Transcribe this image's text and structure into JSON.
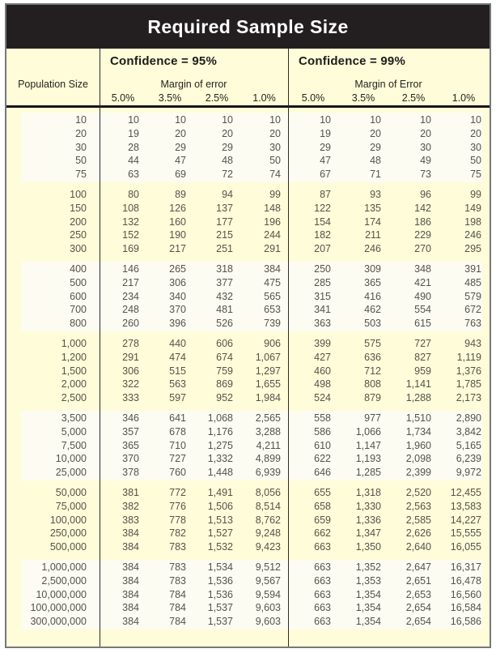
{
  "title": "Required Sample Size",
  "header": {
    "population_label": "Population Size",
    "blocks": [
      {
        "confidence_label": "Confidence = 95%",
        "margin_label": "Margin of error",
        "margins": [
          "5.0%",
          "3.5%",
          "2.5%",
          "1.0%"
        ]
      },
      {
        "confidence_label": "Confidence = 99%",
        "margin_label": "Margin of Error",
        "margins": [
          "5.0%",
          "3.5%",
          "2.5%",
          "1.0%"
        ]
      }
    ]
  },
  "colors": {
    "header_band": "#231F20",
    "cream_background": "#FFFCD9",
    "band_white": "#FCFCF3",
    "data_text": "#54534b",
    "rule": "#161614"
  },
  "table": {
    "groups": [
      {
        "rows": [
          {
            "population": "10",
            "c95": [
              "10",
              "10",
              "10",
              "10"
            ],
            "c99": [
              "10",
              "10",
              "10",
              "10"
            ]
          },
          {
            "population": "20",
            "c95": [
              "19",
              "20",
              "20",
              "20"
            ],
            "c99": [
              "19",
              "20",
              "20",
              "20"
            ]
          },
          {
            "population": "30",
            "c95": [
              "28",
              "29",
              "29",
              "30"
            ],
            "c99": [
              "29",
              "29",
              "30",
              "30"
            ]
          },
          {
            "population": "50",
            "c95": [
              "44",
              "47",
              "48",
              "50"
            ],
            "c99": [
              "47",
              "48",
              "49",
              "50"
            ]
          },
          {
            "population": "75",
            "c95": [
              "63",
              "69",
              "72",
              "74"
            ],
            "c99": [
              "67",
              "71",
              "73",
              "75"
            ]
          }
        ]
      },
      {
        "rows": [
          {
            "population": "100",
            "c95": [
              "80",
              "89",
              "94",
              "99"
            ],
            "c99": [
              "87",
              "93",
              "96",
              "99"
            ]
          },
          {
            "population": "150",
            "c95": [
              "108",
              "126",
              "137",
              "148"
            ],
            "c99": [
              "122",
              "135",
              "142",
              "149"
            ]
          },
          {
            "population": "200",
            "c95": [
              "132",
              "160",
              "177",
              "196"
            ],
            "c99": [
              "154",
              "174",
              "186",
              "198"
            ]
          },
          {
            "population": "250",
            "c95": [
              "152",
              "190",
              "215",
              "244"
            ],
            "c99": [
              "182",
              "211",
              "229",
              "246"
            ]
          },
          {
            "population": "300",
            "c95": [
              "169",
              "217",
              "251",
              "291"
            ],
            "c99": [
              "207",
              "246",
              "270",
              "295"
            ]
          }
        ]
      },
      {
        "rows": [
          {
            "population": "400",
            "c95": [
              "146",
              "265",
              "318",
              "384"
            ],
            "c99": [
              "250",
              "309",
              "348",
              "391"
            ]
          },
          {
            "population": "500",
            "c95": [
              "217",
              "306",
              "377",
              "475"
            ],
            "c99": [
              "285",
              "365",
              "421",
              "485"
            ]
          },
          {
            "population": "600",
            "c95": [
              "234",
              "340",
              "432",
              "565"
            ],
            "c99": [
              "315",
              "416",
              "490",
              "579"
            ]
          },
          {
            "population": "700",
            "c95": [
              "248",
              "370",
              "481",
              "653"
            ],
            "c99": [
              "341",
              "462",
              "554",
              "672"
            ]
          },
          {
            "population": "800",
            "c95": [
              "260",
              "396",
              "526",
              "739"
            ],
            "c99": [
              "363",
              "503",
              "615",
              "763"
            ]
          }
        ]
      },
      {
        "rows": [
          {
            "population": "1,000",
            "c95": [
              "278",
              "440",
              "606",
              "906"
            ],
            "c99": [
              "399",
              "575",
              "727",
              "943"
            ]
          },
          {
            "population": "1,200",
            "c95": [
              "291",
              "474",
              "674",
              "1,067"
            ],
            "c99": [
              "427",
              "636",
              "827",
              "1,119"
            ]
          },
          {
            "population": "1,500",
            "c95": [
              "306",
              "515",
              "759",
              "1,297"
            ],
            "c99": [
              "460",
              "712",
              "959",
              "1,376"
            ]
          },
          {
            "population": "2,000",
            "c95": [
              "322",
              "563",
              "869",
              "1,655"
            ],
            "c99": [
              "498",
              "808",
              "1,141",
              "1,785"
            ]
          },
          {
            "population": "2,500",
            "c95": [
              "333",
              "597",
              "952",
              "1,984"
            ],
            "c99": [
              "524",
              "879",
              "1,288",
              "2,173"
            ]
          }
        ]
      },
      {
        "rows": [
          {
            "population": "3,500",
            "c95": [
              "346",
              "641",
              "1,068",
              "2,565"
            ],
            "c99": [
              "558",
              "977",
              "1,510",
              "2,890"
            ]
          },
          {
            "population": "5,000",
            "c95": [
              "357",
              "678",
              "1,176",
              "3,288"
            ],
            "c99": [
              "586",
              "1,066",
              "1,734",
              "3,842"
            ]
          },
          {
            "population": "7,500",
            "c95": [
              "365",
              "710",
              "1,275",
              "4,211"
            ],
            "c99": [
              "610",
              "1,147",
              "1,960",
              "5,165"
            ]
          },
          {
            "population": "10,000",
            "c95": [
              "370",
              "727",
              "1,332",
              "4,899"
            ],
            "c99": [
              "622",
              "1,193",
              "2,098",
              "6,239"
            ]
          },
          {
            "population": "25,000",
            "c95": [
              "378",
              "760",
              "1,448",
              "6,939"
            ],
            "c99": [
              "646",
              "1,285",
              "2,399",
              "9,972"
            ]
          }
        ]
      },
      {
        "rows": [
          {
            "population": "50,000",
            "c95": [
              "381",
              "772",
              "1,491",
              "8,056"
            ],
            "c99": [
              "655",
              "1,318",
              "2,520",
              "12,455"
            ]
          },
          {
            "population": "75,000",
            "c95": [
              "382",
              "776",
              "1,506",
              "8,514"
            ],
            "c99": [
              "658",
              "1,330",
              "2,563",
              "13,583"
            ]
          },
          {
            "population": "100,000",
            "c95": [
              "383",
              "778",
              "1,513",
              "8,762"
            ],
            "c99": [
              "659",
              "1,336",
              "2,585",
              "14,227"
            ]
          },
          {
            "population": "250,000",
            "c95": [
              "384",
              "782",
              "1,527",
              "9,248"
            ],
            "c99": [
              "662",
              "1,347",
              "2,626",
              "15,555"
            ]
          },
          {
            "population": "500,000",
            "c95": [
              "384",
              "783",
              "1,532",
              "9,423"
            ],
            "c99": [
              "663",
              "1,350",
              "2,640",
              "16,055"
            ]
          }
        ]
      },
      {
        "rows": [
          {
            "population": "1,000,000",
            "c95": [
              "384",
              "783",
              "1,534",
              "9,512"
            ],
            "c99": [
              "663",
              "1,352",
              "2,647",
              "16,317"
            ]
          },
          {
            "population": "2,500,000",
            "c95": [
              "384",
              "783",
              "1,536",
              "9,567"
            ],
            "c99": [
              "663",
              "1,353",
              "2,651",
              "16,478"
            ]
          },
          {
            "population": "10,000,000",
            "c95": [
              "384",
              "784",
              "1,536",
              "9,594"
            ],
            "c99": [
              "663",
              "1,354",
              "2,653",
              "16,560"
            ]
          },
          {
            "population": "100,000,000",
            "c95": [
              "384",
              "784",
              "1,537",
              "9,603"
            ],
            "c99": [
              "663",
              "1,354",
              "2,654",
              "16,584"
            ]
          },
          {
            "population": "300,000,000",
            "c95": [
              "384",
              "784",
              "1,537",
              "9,603"
            ],
            "c99": [
              "663",
              "1,354",
              "2,654",
              "16,586"
            ]
          }
        ]
      }
    ]
  }
}
